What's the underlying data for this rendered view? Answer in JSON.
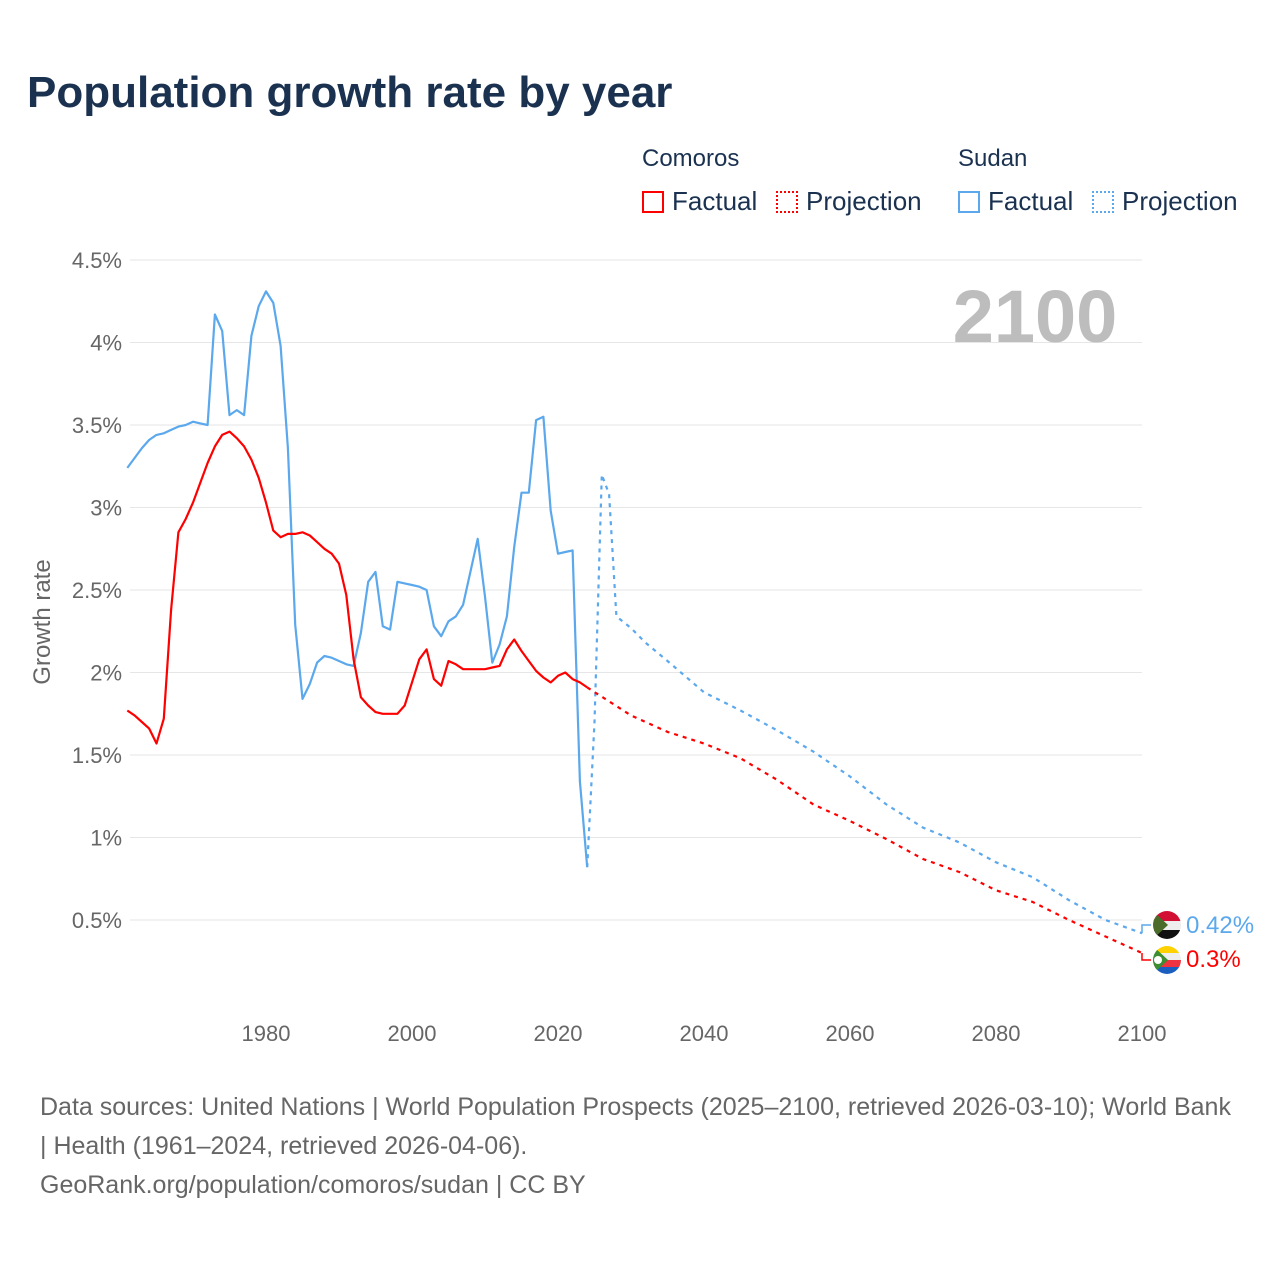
{
  "title": "Population growth rate by year",
  "legend": {
    "groups": [
      {
        "name": "Comoros",
        "color": "#ff0000",
        "factual": "Factual",
        "projection": "Projection"
      },
      {
        "name": "Sudan",
        "color": "#5ba8ec",
        "factual": "Factual",
        "projection": "Projection"
      }
    ]
  },
  "year_label": "2100",
  "end_labels": {
    "sudan": "0.42%",
    "comoros": "0.3%"
  },
  "sources": {
    "line1": "Data sources: United Nations | World Population Prospects (2025–2100, retrieved 2026-03-10); World Bank | Health (1961–2024, retrieved 2026-04-06).",
    "line2": "GeoRank.org/population/comoros/sudan | CC BY"
  },
  "chart_data": {
    "type": "line",
    "title": "Population growth rate by year",
    "xlabel": "",
    "ylabel": "Growth rate",
    "xlim": [
      1961,
      2100
    ],
    "ylim": [
      0,
      4.5
    ],
    "xticks": [
      1980,
      2000,
      2020,
      2040,
      2060,
      2080,
      2100
    ],
    "xtick_labels": [
      "1980",
      "2000",
      "2020",
      "2040",
      "2060",
      "2080",
      "2100"
    ],
    "yticks": [
      0.5,
      1,
      1.5,
      2,
      2.5,
      3,
      3.5,
      4,
      4.5
    ],
    "ytick_labels": [
      "0.5%",
      "1%",
      "1.5%",
      "2%",
      "2.5%",
      "3%",
      "3.5%",
      "4%",
      "4.5%"
    ],
    "grid": true,
    "legend_position": "top-right",
    "series": [
      {
        "name": "Sudan Factual",
        "color": "#5ba8ec",
        "dashed": false,
        "start": 1961,
        "values": [
          3.24,
          3.3,
          3.36,
          3.41,
          3.44,
          3.45,
          3.47,
          3.49,
          3.5,
          3.52,
          3.51,
          3.5,
          4.17,
          4.07,
          3.56,
          3.59,
          3.56,
          4.04,
          4.22,
          4.31,
          4.24,
          3.98,
          3.36,
          2.29,
          1.84,
          1.93,
          2.06,
          2.1,
          2.09,
          2.07,
          2.05,
          2.04,
          2.24,
          2.55,
          2.61,
          2.28,
          2.26,
          2.55,
          2.54,
          2.53,
          2.52,
          2.5,
          2.28,
          2.22,
          2.31,
          2.34,
          2.41,
          2.61,
          2.81,
          2.46,
          2.06,
          2.17,
          2.34,
          2.76,
          3.09,
          3.09,
          3.53,
          3.55,
          2.98,
          2.72,
          2.73,
          2.74,
          1.34,
          0.82
        ]
      },
      {
        "name": "Comoros Factual",
        "color": "#ff0000",
        "dashed": false,
        "start": 1961,
        "values": [
          1.77,
          1.74,
          1.7,
          1.66,
          1.57,
          1.72,
          2.38,
          2.85,
          2.93,
          3.03,
          3.15,
          3.27,
          3.37,
          3.44,
          3.46,
          3.42,
          3.37,
          3.29,
          3.18,
          3.03,
          2.86,
          2.82,
          2.84,
          2.84,
          2.85,
          2.83,
          2.79,
          2.75,
          2.72,
          2.66,
          2.47,
          2.08,
          1.85,
          1.8,
          1.76,
          1.75,
          1.75,
          1.75,
          1.8,
          1.94,
          2.08,
          2.14,
          1.96,
          1.92,
          2.07,
          2.05,
          2.02,
          2.02,
          2.02,
          2.02,
          2.03,
          2.04,
          2.14,
          2.2,
          2.13,
          2.07,
          2.01,
          1.97,
          1.94,
          1.98,
          2.0,
          1.96,
          1.94,
          1.91
        ]
      },
      {
        "name": "Sudan Projection",
        "color": "#5ba8ec",
        "dashed": true,
        "points": [
          [
            2024,
            0.82
          ],
          [
            2025,
            1.7
          ],
          [
            2026,
            3.2
          ],
          [
            2027,
            3.08
          ],
          [
            2028,
            2.34
          ],
          [
            2030,
            2.27
          ],
          [
            2032,
            2.18
          ],
          [
            2035,
            2.07
          ],
          [
            2040,
            1.88
          ],
          [
            2045,
            1.77
          ],
          [
            2050,
            1.65
          ],
          [
            2055,
            1.52
          ],
          [
            2060,
            1.37
          ],
          [
            2065,
            1.2
          ],
          [
            2070,
            1.06
          ],
          [
            2075,
            0.97
          ],
          [
            2080,
            0.85
          ],
          [
            2085,
            0.76
          ],
          [
            2090,
            0.62
          ],
          [
            2095,
            0.5
          ],
          [
            2100,
            0.42
          ]
        ]
      },
      {
        "name": "Comoros Projection",
        "color": "#ff0000",
        "dashed": true,
        "points": [
          [
            2024,
            1.91
          ],
          [
            2030,
            1.74
          ],
          [
            2035,
            1.64
          ],
          [
            2040,
            1.57
          ],
          [
            2045,
            1.48
          ],
          [
            2050,
            1.35
          ],
          [
            2055,
            1.2
          ],
          [
            2060,
            1.1
          ],
          [
            2065,
            0.99
          ],
          [
            2070,
            0.87
          ],
          [
            2075,
            0.79
          ],
          [
            2080,
            0.68
          ],
          [
            2085,
            0.61
          ],
          [
            2090,
            0.5
          ],
          [
            2095,
            0.4
          ],
          [
            2100,
            0.3
          ]
        ]
      }
    ]
  }
}
